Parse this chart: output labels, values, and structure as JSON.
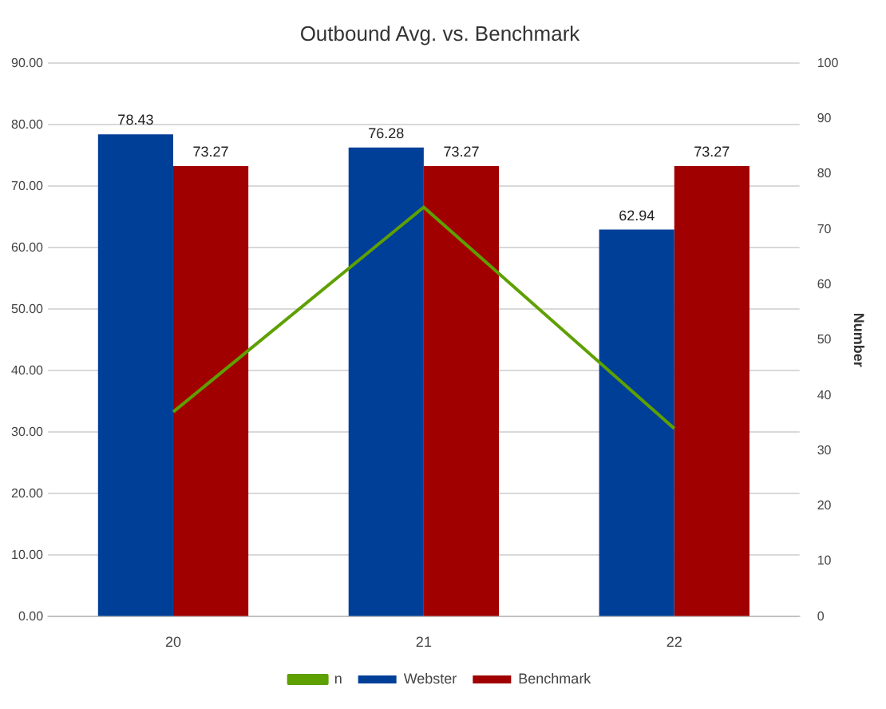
{
  "chart_data": {
    "type": "bar",
    "title": "Outbound Avg. vs. Benchmark",
    "y2label": "Number",
    "categories": [
      "20",
      "21",
      "22"
    ],
    "series": [
      {
        "name": "Webster",
        "color": "#003f98",
        "values": [
          78.43,
          76.28,
          62.94
        ],
        "value_labels": [
          "78.43",
          "76.28",
          "62.94"
        ]
      },
      {
        "name": "Benchmark",
        "color": "#a00000",
        "values": [
          73.27,
          73.27,
          73.27
        ],
        "value_labels": [
          "73.27",
          "73.27",
          "73.27"
        ]
      },
      {
        "name": "n",
        "type": "line",
        "axis": "y2",
        "color": "#5ea000",
        "values": [
          37,
          74,
          34
        ]
      }
    ],
    "ylim": [
      0,
      90
    ],
    "yticks": [
      {
        "value": 0,
        "label": "0.00"
      },
      {
        "value": 10,
        "label": "10.00"
      },
      {
        "value": 20,
        "label": "20.00"
      },
      {
        "value": 30,
        "label": "30.00"
      },
      {
        "value": 40,
        "label": "40.00"
      },
      {
        "value": 50,
        "label": "50.00"
      },
      {
        "value": 60,
        "label": "60.00"
      },
      {
        "value": 70,
        "label": "70.00"
      },
      {
        "value": 80,
        "label": "80.00"
      },
      {
        "value": 90,
        "label": "90.00"
      }
    ],
    "y2lim": [
      0,
      100
    ],
    "y2ticks": [
      0,
      10,
      20,
      30,
      40,
      50,
      60,
      70,
      80,
      90,
      100
    ],
    "grid": "y",
    "legend": "bottom",
    "marker": "none"
  }
}
